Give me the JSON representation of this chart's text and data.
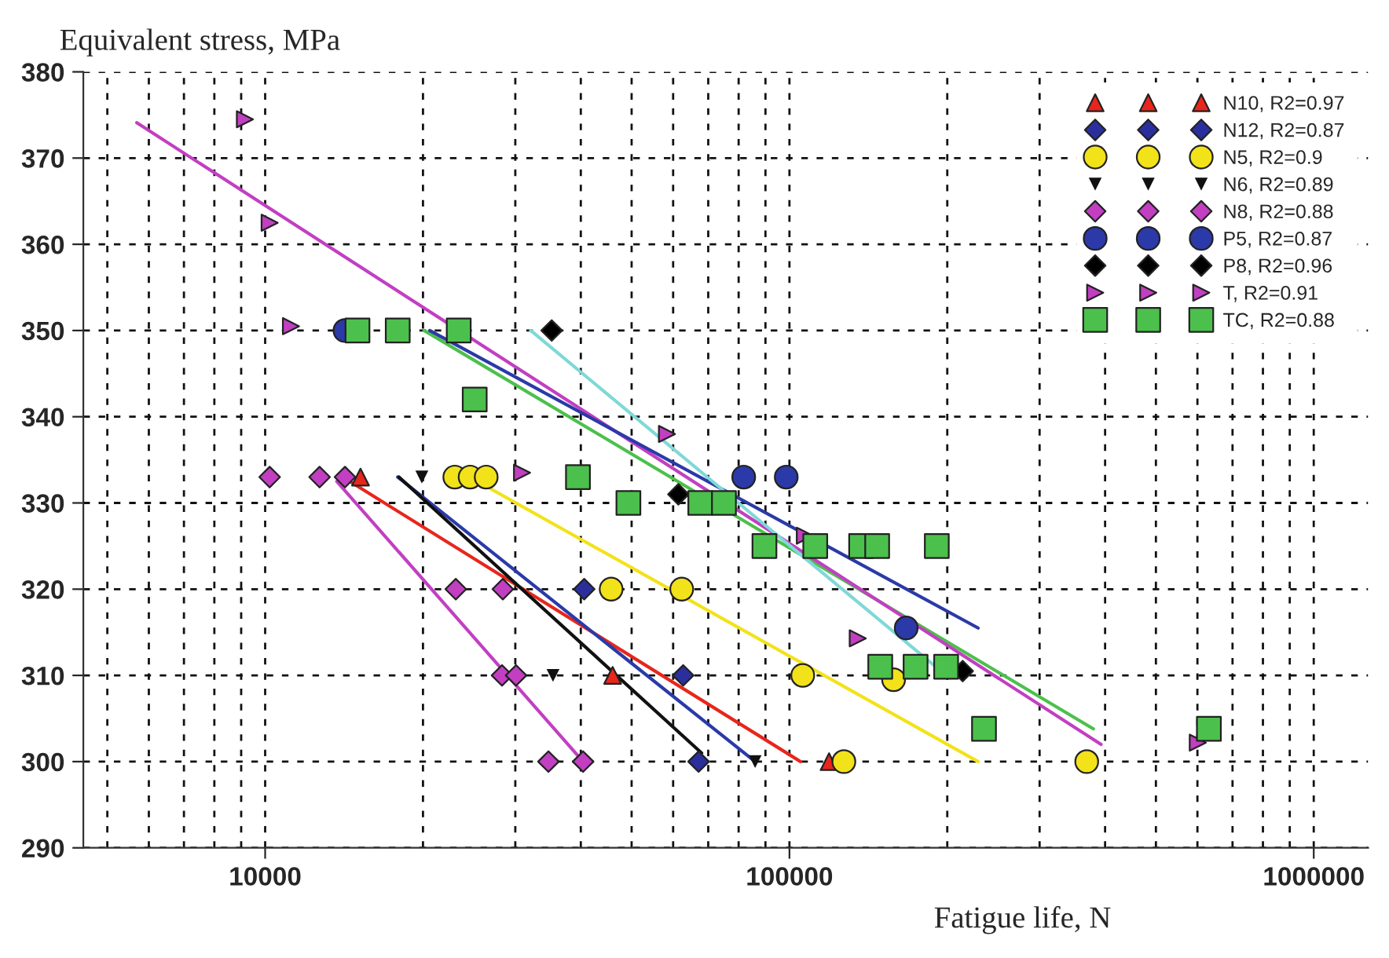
{
  "chart_data": {
    "type": "scatter",
    "xlabel": "Fatigue life, N",
    "ylabel": "Equivalent stress, MPa",
    "log": "x",
    "xlim": [
      4500,
      1270000
    ],
    "xticks": [
      10000,
      100000,
      1000000
    ],
    "ylim": [
      290,
      380
    ],
    "yticks": [
      290,
      300,
      310,
      320,
      330,
      340,
      350,
      360,
      370,
      380
    ],
    "grid": true,
    "legend": "top right",
    "series": [
      {
        "name": "N10, R2=0.97",
        "color": "#e8261c",
        "marker": "triangle",
        "x": [
          15200,
          46000,
          119000
        ],
        "values": [
          333,
          310,
          300
        ]
      },
      {
        "name": "N12, R2=0.87",
        "color": "#2b2f9e",
        "marker": "diamond",
        "x": [
          40600,
          62700,
          67100
        ],
        "values": [
          320,
          310,
          300
        ]
      },
      {
        "name": "N5, R2=0.9",
        "color": "#f2e21a",
        "marker": "circle",
        "x": [
          23000,
          24600,
          26400,
          45700,
          62300,
          106000,
          158000,
          127000,
          369000
        ],
        "values": [
          333,
          333,
          333,
          320,
          320,
          310,
          309.5,
          300,
          300
        ]
      },
      {
        "name": "N6, R2=0.89",
        "color": "#111111",
        "marker": "triangle_down",
        "x": [
          19900,
          35400,
          86000
        ],
        "values": [
          333,
          310,
          300
        ]
      },
      {
        "name": "N8, R2=0.88",
        "color": "#c23fc2",
        "marker": "diamond",
        "x": [
          10200,
          12700,
          14200,
          23100,
          28400,
          28300,
          30100,
          34700,
          40400
        ],
        "values": [
          333,
          333,
          333,
          320,
          320,
          310,
          310,
          300,
          300
        ]
      },
      {
        "name": "P5, R2=0.87",
        "color": "#2b3aa8",
        "marker": "circle",
        "x": [
          14200,
          81800,
          98600,
          167000
        ],
        "values": [
          350,
          333,
          333,
          315.5
        ]
      },
      {
        "name": "P8, R2=0.96",
        "color": "#000000",
        "marker": "diamond",
        "x": [
          35200,
          61400,
          214000
        ],
        "values": [
          350,
          331,
          310.5
        ]
      },
      {
        "name": "T, R2=0.91",
        "color": "#c23fc2",
        "marker": "triangle_right",
        "x": [
          9150,
          10200,
          11200,
          30900,
          58400,
          107000,
          135000,
          601000
        ],
        "values": [
          374.5,
          362.5,
          350.5,
          333.5,
          338,
          326.2,
          314.3,
          302.2
        ]
      },
      {
        "name": "TC, R2=0.88",
        "color": "#4cc04c",
        "marker": "square",
        "x": [
          15000,
          17900,
          23400,
          25100,
          39500,
          49300,
          67600,
          75000,
          89600,
          112000,
          137000,
          147000,
          191000,
          149000,
          174000,
          199000,
          235000,
          631000
        ],
        "values": [
          350,
          350,
          350,
          342,
          333,
          330,
          330,
          330,
          325,
          325,
          325,
          325,
          325,
          311,
          311,
          311,
          303.8,
          303.8
        ]
      },
      {
        "type": "line",
        "color": "#e8261c",
        "x": [
          14500,
          105000
        ],
        "values": [
          332.5,
          300
        ]
      },
      {
        "type": "line",
        "color": "#2b3aa8",
        "x": [
          17900,
          86000
        ],
        "values": [
          333,
          300
        ]
      },
      {
        "type": "line",
        "color": "#111111",
        "x": [
          18000,
          68000
        ],
        "values": [
          333,
          301
        ]
      },
      {
        "type": "line",
        "color": "#c23fc2",
        "x": [
          13700,
          40400
        ],
        "values": [
          332.5,
          300
        ]
      },
      {
        "type": "line",
        "color": "#f2e21a",
        "x": [
          25400,
          229000
        ],
        "values": [
          332.5,
          300
        ]
      },
      {
        "type": "line",
        "color": "#4cc04c",
        "x": [
          20100,
          380000
        ],
        "values": [
          350,
          303.8
        ]
      },
      {
        "type": "line",
        "color": "#c23fc2",
        "x": [
          5690,
          393000
        ],
        "values": [
          374.1,
          302
        ]
      },
      {
        "type": "line",
        "color": "#2b3aa8",
        "x": [
          20600,
          229000
        ],
        "values": [
          350,
          315.5
        ]
      },
      {
        "type": "line",
        "color": "#7fd8d8",
        "x": [
          32100,
          199000
        ],
        "values": [
          350,
          310
        ]
      }
    ]
  }
}
